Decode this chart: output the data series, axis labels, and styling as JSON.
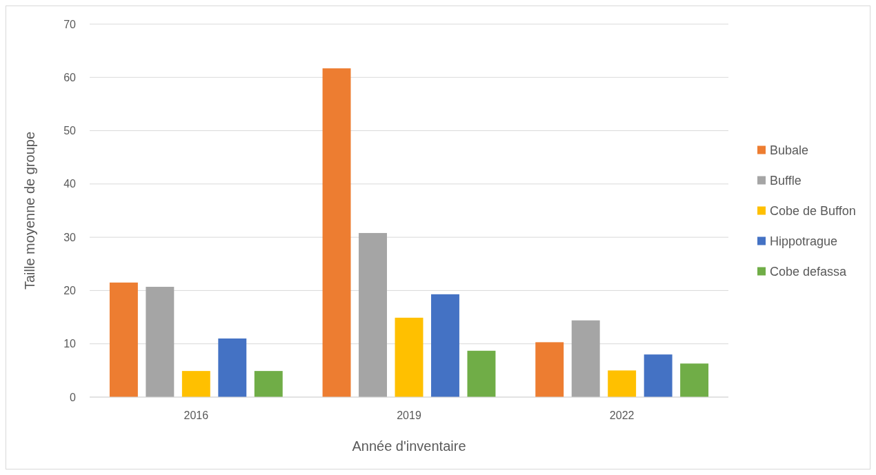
{
  "chart_data": {
    "type": "bar",
    "xlabel": "Année d'inventaire",
    "ylabel": "Taille moyenne de groupe",
    "categories": [
      "2016",
      "2019",
      "2022"
    ],
    "series": [
      {
        "name": "Bubale",
        "color": "#ed7d31",
        "values": [
          21.5,
          61.7,
          10.3
        ]
      },
      {
        "name": "Buffle",
        "color": "#a5a5a5",
        "values": [
          20.7,
          30.8,
          14.4
        ]
      },
      {
        "name": "Cobe de Buffon",
        "color": "#ffc000",
        "values": [
          4.9,
          14.9,
          5.0
        ]
      },
      {
        "name": "Hippotrague",
        "color": "#4472c4",
        "values": [
          11.0,
          19.3,
          8.0
        ]
      },
      {
        "name": "Cobe defassa",
        "color": "#70ad47",
        "values": [
          4.9,
          8.7,
          6.3
        ]
      }
    ],
    "ylim": [
      0,
      70
    ],
    "yticks": [
      0,
      10,
      20,
      30,
      40,
      50,
      60,
      70
    ],
    "grid": "y",
    "legend": "right"
  }
}
